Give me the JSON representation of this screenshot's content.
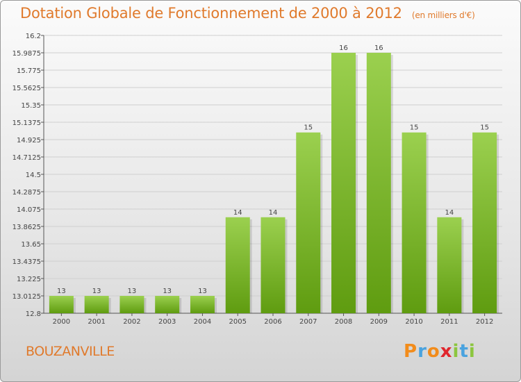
{
  "header": {
    "title": "Dotation Globale de Fonctionnement de 2000 à 2012",
    "subtitle": "(en milliers d'€)"
  },
  "footer": {
    "commune": "BOUZANVILLE",
    "logo_letters": [
      "P",
      "r",
      "o",
      "x",
      "i",
      "t",
      "i"
    ],
    "logo_colors": [
      "#f28c1b",
      "#4aa3df",
      "#f28c1b",
      "#e0262d",
      "#8cc63f",
      "#4aa3df",
      "#8cc63f"
    ]
  },
  "colors": {
    "bar_light": "#9bd04f",
    "bar_dark": "#5f9c10",
    "grid": "#cfcfcf",
    "axis": "#555555"
  },
  "chart_data": {
    "type": "bar",
    "title": "Dotation Globale de Fonctionnement de 2000 à 2012",
    "xlabel": "",
    "ylabel": "",
    "ylim": [
      12.8,
      16.2
    ],
    "categories": [
      "2000",
      "2001",
      "2002",
      "2003",
      "2004",
      "2005",
      "2006",
      "2007",
      "2008",
      "2009",
      "2010",
      "2011",
      "2012"
    ],
    "values": [
      13,
      13,
      13,
      13,
      13,
      14,
      14,
      15,
      16,
      16,
      15,
      14,
      15
    ],
    "bar_values": [
      13.0125,
      13.0125,
      13.0125,
      13.0125,
      13.0125,
      13.975,
      13.975,
      15.0125,
      15.9875,
      15.9875,
      15.0125,
      13.975,
      15.0125
    ],
    "yticks": [
      "12.8",
      "13.0125",
      "13.225",
      "13.4375",
      "13.65",
      "13.8625",
      "14.075",
      "14.2875",
      "14.5",
      "14.7125",
      "14.925",
      "15.1375",
      "15.35",
      "15.5625",
      "15.775",
      "15.9875",
      "16.2"
    ],
    "grid": true
  }
}
